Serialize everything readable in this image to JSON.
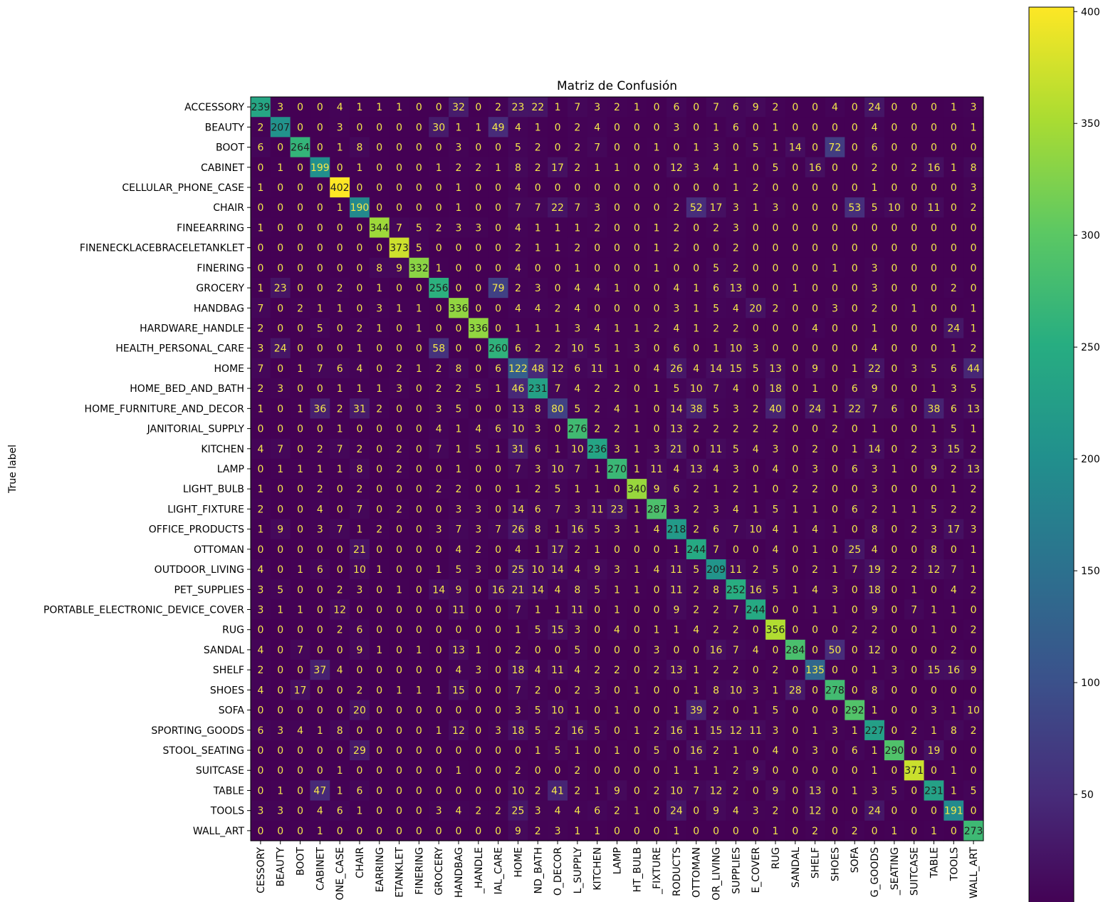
{
  "chart_data": {
    "type": "heatmap",
    "title": "Matriz de Confusión",
    "ylabel": "True label",
    "xlabel": "",
    "labels": [
      "ACCESSORY",
      "BEAUTY",
      "BOOT",
      "CABINET",
      "CELLULAR_PHONE_CASE",
      "CHAIR",
      "FINEEARRING",
      "FINENECKLACEBRACELETANKLET",
      "FINERING",
      "GROCERY",
      "HANDBAG",
      "HARDWARE_HANDLE",
      "HEALTH_PERSONAL_CARE",
      "HOME",
      "HOME_BED_AND_BATH",
      "HOME_FURNITURE_AND_DECOR",
      "JANITORIAL_SUPPLY",
      "KITCHEN",
      "LAMP",
      "LIGHT_BULB",
      "LIGHT_FIXTURE",
      "OFFICE_PRODUCTS",
      "OTTOMAN",
      "OUTDOOR_LIVING",
      "PET_SUPPLIES",
      "PORTABLE_ELECTRONIC_DEVICE_COVER",
      "RUG",
      "SANDAL",
      "SHELF",
      "SHOES",
      "SOFA",
      "SPORTING_GOODS",
      "STOOL_SEATING",
      "SUITCASE",
      "TABLE",
      "TOOLS",
      "WALL_ART"
    ],
    "x_tick_labels": [
      "CESSORY",
      "BEAUTY",
      "BOOT",
      "CABINET",
      "ONE_CASE",
      "CHAIR",
      "EARRING",
      "ETANKLET",
      "FINERING",
      "GROCERY",
      "HANDBAG",
      "_HANDLE",
      "IAL_CARE",
      "HOME",
      "ND_BATH",
      "O_DECOR",
      "L_SUPPLY",
      "KITCHEN",
      "LAMP",
      "HT_BULB",
      "_FIXTURE",
      "RODUCTS",
      "OTTOMAN",
      "OR_LIVING",
      "SUPPLIES",
      "E_COVER",
      "RUG",
      "SANDAL",
      "SHELF",
      "SHOES",
      "SOFA",
      "G_GOODS",
      "_SEATING",
      "SUITCASE",
      "TABLE",
      "TOOLS",
      "WALL_ART"
    ],
    "matrix": [
      [
        239,
        3,
        0,
        0,
        4,
        1,
        1,
        1,
        0,
        0,
        32,
        0,
        2,
        23,
        22,
        1,
        7,
        3,
        2,
        1,
        0,
        6,
        0,
        7,
        6,
        9,
        2,
        0,
        0,
        4,
        0,
        24,
        0,
        0,
        0,
        1,
        3
      ],
      [
        2,
        207,
        0,
        0,
        3,
        0,
        0,
        0,
        0,
        30,
        1,
        1,
        49,
        4,
        1,
        0,
        2,
        4,
        0,
        0,
        0,
        3,
        0,
        1,
        6,
        0,
        1,
        0,
        0,
        0,
        0,
        4,
        0,
        0,
        0,
        0,
        1
      ],
      [
        6,
        0,
        264,
        0,
        1,
        8,
        0,
        0,
        0,
        0,
        3,
        0,
        0,
        5,
        2,
        0,
        2,
        7,
        0,
        0,
        1,
        0,
        1,
        3,
        0,
        5,
        1,
        14,
        0,
        72,
        0,
        6,
        0,
        0,
        0,
        0,
        0
      ],
      [
        0,
        1,
        0,
        199,
        0,
        1,
        0,
        0,
        0,
        1,
        2,
        2,
        1,
        8,
        2,
        17,
        2,
        1,
        1,
        0,
        0,
        12,
        3,
        4,
        1,
        0,
        5,
        0,
        16,
        0,
        0,
        2,
        0,
        2,
        16,
        1,
        8
      ],
      [
        1,
        0,
        0,
        0,
        402,
        0,
        0,
        0,
        0,
        0,
        1,
        0,
        0,
        4,
        0,
        0,
        0,
        0,
        0,
        0,
        0,
        0,
        0,
        0,
        1,
        2,
        0,
        0,
        0,
        0,
        0,
        1,
        0,
        0,
        0,
        0,
        3
      ],
      [
        0,
        0,
        0,
        0,
        1,
        190,
        0,
        0,
        0,
        0,
        1,
        0,
        0,
        7,
        7,
        22,
        7,
        3,
        0,
        0,
        0,
        2,
        52,
        17,
        3,
        1,
        3,
        0,
        0,
        0,
        53,
        5,
        10,
        0,
        11,
        0,
        2
      ],
      [
        1,
        0,
        0,
        0,
        0,
        0,
        344,
        7,
        5,
        2,
        3,
        3,
        0,
        4,
        1,
        1,
        1,
        2,
        0,
        0,
        1,
        2,
        0,
        2,
        3,
        0,
        0,
        0,
        0,
        0,
        0,
        0,
        0,
        0,
        0,
        0,
        0
      ],
      [
        0,
        0,
        0,
        0,
        0,
        0,
        0,
        373,
        5,
        0,
        0,
        0,
        0,
        2,
        1,
        1,
        2,
        0,
        0,
        0,
        1,
        2,
        0,
        0,
        2,
        0,
        0,
        0,
        0,
        0,
        0,
        0,
        0,
        0,
        0,
        0,
        0
      ],
      [
        0,
        0,
        0,
        0,
        0,
        0,
        8,
        9,
        332,
        1,
        0,
        0,
        0,
        4,
        0,
        0,
        1,
        0,
        0,
        0,
        1,
        0,
        0,
        5,
        2,
        0,
        0,
        0,
        0,
        1,
        0,
        3,
        0,
        0,
        0,
        0,
        0
      ],
      [
        1,
        23,
        0,
        0,
        2,
        0,
        1,
        0,
        0,
        256,
        0,
        0,
        79,
        2,
        3,
        0,
        4,
        4,
        1,
        0,
        0,
        4,
        1,
        6,
        13,
        0,
        0,
        1,
        0,
        0,
        0,
        3,
        0,
        0,
        0,
        2,
        0
      ],
      [
        7,
        0,
        2,
        1,
        1,
        0,
        3,
        1,
        1,
        0,
        336,
        0,
        0,
        4,
        4,
        2,
        4,
        0,
        0,
        0,
        0,
        3,
        1,
        5,
        4,
        20,
        2,
        0,
        0,
        3,
        0,
        2,
        0,
        1,
        0,
        0,
        1
      ],
      [
        2,
        0,
        0,
        5,
        0,
        2,
        1,
        0,
        1,
        0,
        0,
        336,
        0,
        1,
        1,
        1,
        3,
        4,
        1,
        1,
        2,
        4,
        1,
        2,
        2,
        0,
        0,
        0,
        4,
        0,
        0,
        1,
        0,
        0,
        0,
        24,
        1
      ],
      [
        3,
        24,
        0,
        0,
        0,
        1,
        0,
        0,
        0,
        58,
        0,
        0,
        260,
        6,
        2,
        2,
        10,
        5,
        1,
        3,
        0,
        6,
        0,
        1,
        10,
        3,
        0,
        0,
        0,
        0,
        0,
        4,
        0,
        0,
        0,
        1,
        2
      ],
      [
        7,
        0,
        1,
        7,
        6,
        4,
        0,
        2,
        1,
        2,
        8,
        0,
        6,
        122,
        48,
        12,
        6,
        11,
        1,
        0,
        4,
        26,
        4,
        14,
        15,
        5,
        13,
        0,
        9,
        0,
        1,
        22,
        0,
        3,
        5,
        6,
        44
      ],
      [
        2,
        3,
        0,
        0,
        1,
        1,
        1,
        3,
        0,
        2,
        2,
        5,
        1,
        46,
        231,
        7,
        4,
        2,
        2,
        0,
        1,
        5,
        10,
        7,
        4,
        0,
        18,
        0,
        1,
        0,
        6,
        9,
        0,
        0,
        1,
        3,
        5
      ],
      [
        1,
        0,
        1,
        36,
        2,
        31,
        2,
        0,
        0,
        3,
        5,
        0,
        0,
        13,
        8,
        80,
        5,
        2,
        4,
        1,
        0,
        14,
        38,
        5,
        3,
        2,
        40,
        0,
        24,
        1,
        22,
        7,
        6,
        0,
        38,
        6,
        13
      ],
      [
        0,
        0,
        0,
        0,
        1,
        0,
        0,
        0,
        0,
        4,
        1,
        4,
        6,
        10,
        3,
        0,
        276,
        2,
        2,
        1,
        0,
        13,
        2,
        2,
        2,
        2,
        2,
        0,
        0,
        2,
        0,
        1,
        0,
        0,
        1,
        5,
        1
      ],
      [
        4,
        7,
        0,
        2,
        7,
        2,
        0,
        2,
        0,
        7,
        1,
        5,
        1,
        31,
        6,
        1,
        10,
        236,
        3,
        1,
        3,
        21,
        0,
        11,
        5,
        4,
        3,
        0,
        2,
        0,
        1,
        14,
        0,
        2,
        3,
        15,
        2
      ],
      [
        0,
        1,
        1,
        1,
        1,
        8,
        0,
        2,
        0,
        0,
        1,
        0,
        0,
        7,
        3,
        10,
        7,
        1,
        270,
        1,
        11,
        4,
        13,
        4,
        3,
        0,
        4,
        0,
        3,
        0,
        6,
        3,
        1,
        0,
        9,
        2,
        13
      ],
      [
        1,
        0,
        0,
        2,
        0,
        2,
        0,
        0,
        0,
        2,
        2,
        0,
        0,
        1,
        2,
        5,
        1,
        1,
        0,
        340,
        9,
        6,
        2,
        1,
        2,
        1,
        0,
        2,
        2,
        0,
        0,
        3,
        0,
        0,
        0,
        1,
        2
      ],
      [
        2,
        0,
        0,
        4,
        0,
        7,
        0,
        2,
        0,
        0,
        3,
        3,
        0,
        14,
        6,
        7,
        3,
        11,
        23,
        1,
        287,
        3,
        2,
        3,
        4,
        1,
        5,
        1,
        1,
        0,
        6,
        2,
        1,
        1,
        5,
        2,
        2
      ],
      [
        1,
        9,
        0,
        3,
        7,
        1,
        2,
        0,
        0,
        3,
        7,
        3,
        7,
        26,
        8,
        1,
        16,
        5,
        3,
        1,
        4,
        218,
        2,
        6,
        7,
        10,
        4,
        1,
        4,
        1,
        0,
        8,
        0,
        2,
        3,
        17,
        3
      ],
      [
        0,
        0,
        0,
        0,
        0,
        21,
        0,
        0,
        0,
        0,
        4,
        2,
        0,
        4,
        1,
        17,
        2,
        1,
        0,
        0,
        0,
        1,
        244,
        7,
        0,
        0,
        4,
        0,
        1,
        0,
        25,
        4,
        0,
        0,
        8,
        0,
        1
      ],
      [
        4,
        0,
        1,
        6,
        0,
        10,
        1,
        0,
        0,
        1,
        5,
        3,
        0,
        25,
        10,
        14,
        4,
        9,
        3,
        1,
        4,
        11,
        5,
        209,
        11,
        2,
        5,
        0,
        2,
        1,
        7,
        19,
        2,
        2,
        12,
        7,
        1
      ],
      [
        3,
        5,
        0,
        0,
        2,
        3,
        0,
        1,
        0,
        14,
        9,
        0,
        16,
        21,
        14,
        4,
        8,
        5,
        1,
        1,
        0,
        11,
        2,
        8,
        252,
        16,
        5,
        1,
        4,
        3,
        0,
        18,
        0,
        1,
        0,
        4,
        2
      ],
      [
        3,
        1,
        1,
        0,
        12,
        0,
        0,
        0,
        0,
        0,
        11,
        0,
        0,
        7,
        1,
        1,
        11,
        0,
        1,
        0,
        0,
        9,
        2,
        2,
        7,
        244,
        0,
        0,
        1,
        1,
        0,
        9,
        0,
        7,
        1,
        1,
        0
      ],
      [
        0,
        0,
        0,
        0,
        2,
        6,
        0,
        0,
        0,
        0,
        0,
        0,
        0,
        1,
        5,
        15,
        3,
        0,
        4,
        0,
        1,
        1,
        4,
        2,
        2,
        0,
        356,
        0,
        0,
        0,
        2,
        2,
        0,
        0,
        1,
        0,
        2
      ],
      [
        4,
        0,
        7,
        0,
        0,
        9,
        1,
        0,
        1,
        0,
        13,
        1,
        0,
        2,
        0,
        0,
        5,
        0,
        0,
        0,
        3,
        0,
        0,
        16,
        7,
        4,
        0,
        284,
        0,
        50,
        0,
        12,
        0,
        0,
        0,
        2,
        0
      ],
      [
        2,
        0,
        0,
        37,
        4,
        0,
        0,
        0,
        0,
        0,
        4,
        3,
        0,
        18,
        4,
        11,
        4,
        2,
        2,
        0,
        2,
        13,
        1,
        2,
        2,
        0,
        2,
        0,
        135,
        0,
        0,
        1,
        3,
        0,
        15,
        16,
        9
      ],
      [
        4,
        0,
        17,
        0,
        0,
        2,
        0,
        1,
        1,
        1,
        15,
        0,
        0,
        7,
        2,
        0,
        2,
        3,
        0,
        1,
        0,
        0,
        1,
        8,
        10,
        3,
        1,
        28,
        0,
        278,
        0,
        8,
        0,
        0,
        0,
        0,
        0
      ],
      [
        0,
        0,
        0,
        0,
        0,
        20,
        0,
        0,
        0,
        0,
        0,
        0,
        0,
        3,
        5,
        10,
        1,
        0,
        1,
        0,
        0,
        1,
        39,
        2,
        0,
        1,
        5,
        0,
        0,
        0,
        292,
        1,
        0,
        0,
        3,
        1,
        10
      ],
      [
        6,
        3,
        4,
        1,
        8,
        0,
        0,
        0,
        0,
        1,
        12,
        0,
        3,
        18,
        5,
        2,
        16,
        5,
        0,
        1,
        2,
        16,
        1,
        15,
        12,
        11,
        3,
        0,
        1,
        3,
        1,
        227,
        0,
        2,
        1,
        8,
        2
      ],
      [
        0,
        0,
        0,
        0,
        0,
        29,
        0,
        0,
        0,
        0,
        0,
        0,
        0,
        0,
        1,
        5,
        1,
        0,
        1,
        0,
        5,
        0,
        16,
        2,
        1,
        0,
        4,
        0,
        3,
        0,
        6,
        1,
        290,
        0,
        19,
        0,
        0
      ],
      [
        0,
        0,
        0,
        0,
        1,
        0,
        0,
        0,
        0,
        0,
        1,
        0,
        0,
        2,
        0,
        0,
        2,
        0,
        0,
        0,
        0,
        1,
        1,
        1,
        2,
        9,
        0,
        0,
        0,
        0,
        0,
        1,
        0,
        371,
        0,
        1,
        0
      ],
      [
        0,
        1,
        0,
        47,
        1,
        6,
        0,
        0,
        0,
        0,
        0,
        0,
        0,
        10,
        2,
        41,
        2,
        1,
        9,
        0,
        2,
        10,
        7,
        12,
        2,
        0,
        9,
        0,
        13,
        0,
        1,
        3,
        5,
        0,
        231,
        1,
        5
      ],
      [
        3,
        3,
        0,
        4,
        6,
        1,
        0,
        0,
        0,
        3,
        4,
        2,
        2,
        25,
        3,
        4,
        4,
        6,
        2,
        1,
        0,
        24,
        0,
        9,
        4,
        3,
        2,
        0,
        12,
        0,
        0,
        24,
        0,
        0,
        0,
        191,
        0
      ],
      [
        0,
        0,
        0,
        1,
        0,
        0,
        0,
        0,
        0,
        0,
        0,
        0,
        0,
        9,
        2,
        3,
        1,
        1,
        0,
        0,
        0,
        1,
        0,
        0,
        0,
        0,
        1,
        0,
        2,
        0,
        2,
        0,
        1,
        0,
        1,
        0,
        273
      ]
    ],
    "colorbar": {
      "ticks": [
        50,
        100,
        150,
        200,
        250,
        300,
        350,
        400
      ],
      "range": [
        0,
        402
      ]
    },
    "colormap": "viridis",
    "grid": false
  }
}
